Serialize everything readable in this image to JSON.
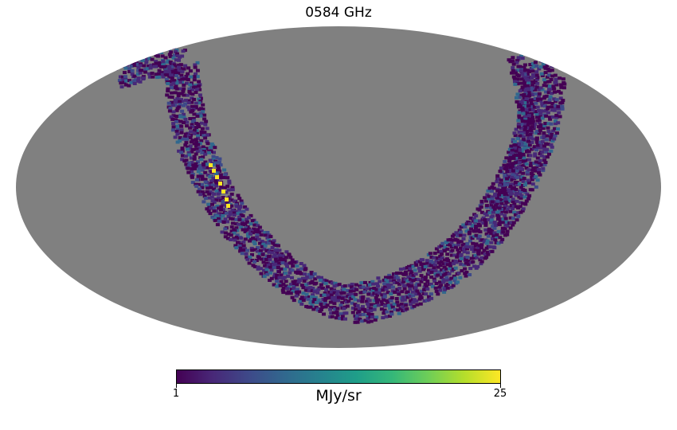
{
  "title": "0584 GHz",
  "projection": "Mollweide",
  "colorbar": {
    "unit": "MJy/sr",
    "min": 1,
    "max": 25,
    "min_label": "1",
    "max_label": "25",
    "cmap": "viridis",
    "colors": [
      "#440154",
      "#482878",
      "#3e4989",
      "#31688e",
      "#26828e",
      "#1f9e89",
      "#35b779",
      "#6ece58",
      "#b5de2b",
      "#fde725"
    ]
  },
  "colors": {
    "masked": "#808080",
    "background": "#ffffff"
  }
}
